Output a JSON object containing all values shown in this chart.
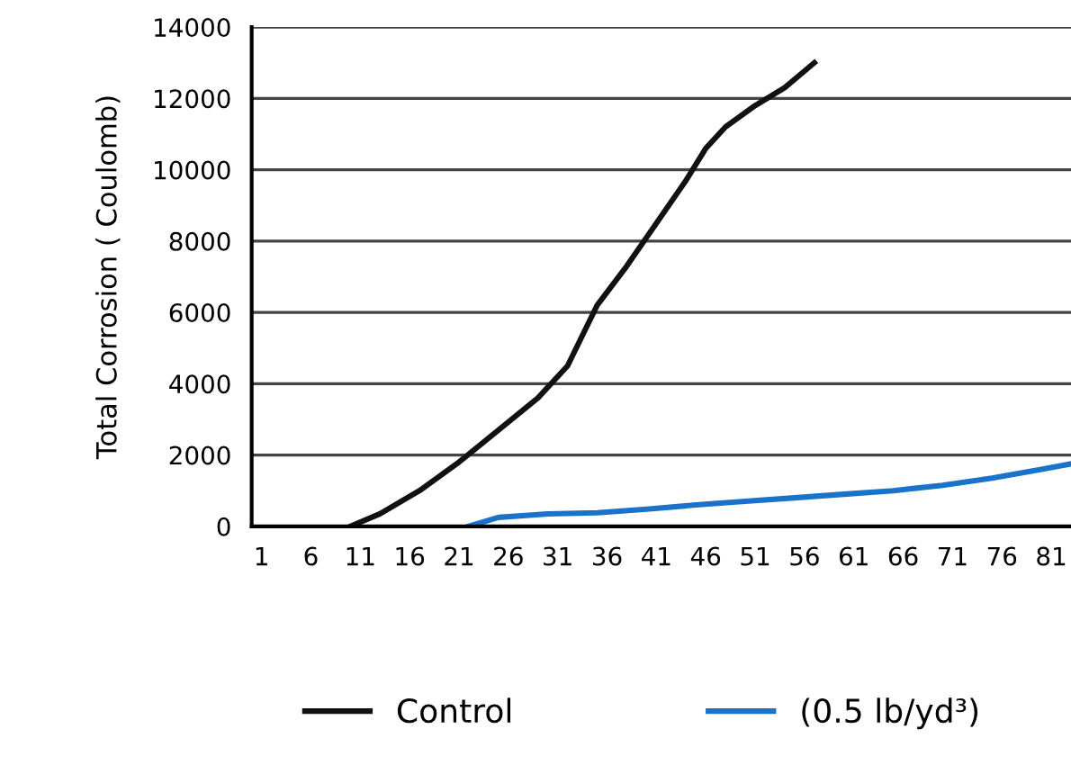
{
  "chart_data": {
    "type": "line",
    "ylabel": "Total Corrosion ( Coulomb)",
    "xlim": [
      0,
      83
    ],
    "xticks": [
      1,
      6,
      11,
      16,
      21,
      26,
      31,
      36,
      41,
      46,
      51,
      56,
      61,
      66,
      71,
      76,
      81
    ],
    "ylim": [
      0,
      14000
    ],
    "yticks": [
      0,
      2000,
      4000,
      6000,
      8000,
      10000,
      12000,
      14000
    ],
    "grid": "y",
    "legend": "bottom",
    "marker": "none",
    "line_style": "solid",
    "series": [
      {
        "name": "Control",
        "color": "#111111",
        "x": [
          10,
          13,
          17,
          21,
          25,
          29,
          32,
          35,
          38,
          41,
          44,
          46,
          48,
          51,
          54,
          57
        ],
        "values": [
          0,
          350,
          1000,
          1800,
          2700,
          3600,
          4500,
          6200,
          7300,
          8500,
          9700,
          10600,
          11200,
          11800,
          12300,
          13000
        ]
      },
      {
        "name": "(0.5 lb/yd³)",
        "color": "#1a73c8",
        "x": [
          22,
          25,
          30,
          35,
          40,
          45,
          50,
          55,
          60,
          65,
          70,
          75,
          80,
          83
        ],
        "values": [
          0,
          250,
          350,
          380,
          480,
          600,
          700,
          800,
          900,
          1000,
          1150,
          1350,
          1600,
          1750
        ]
      }
    ]
  }
}
